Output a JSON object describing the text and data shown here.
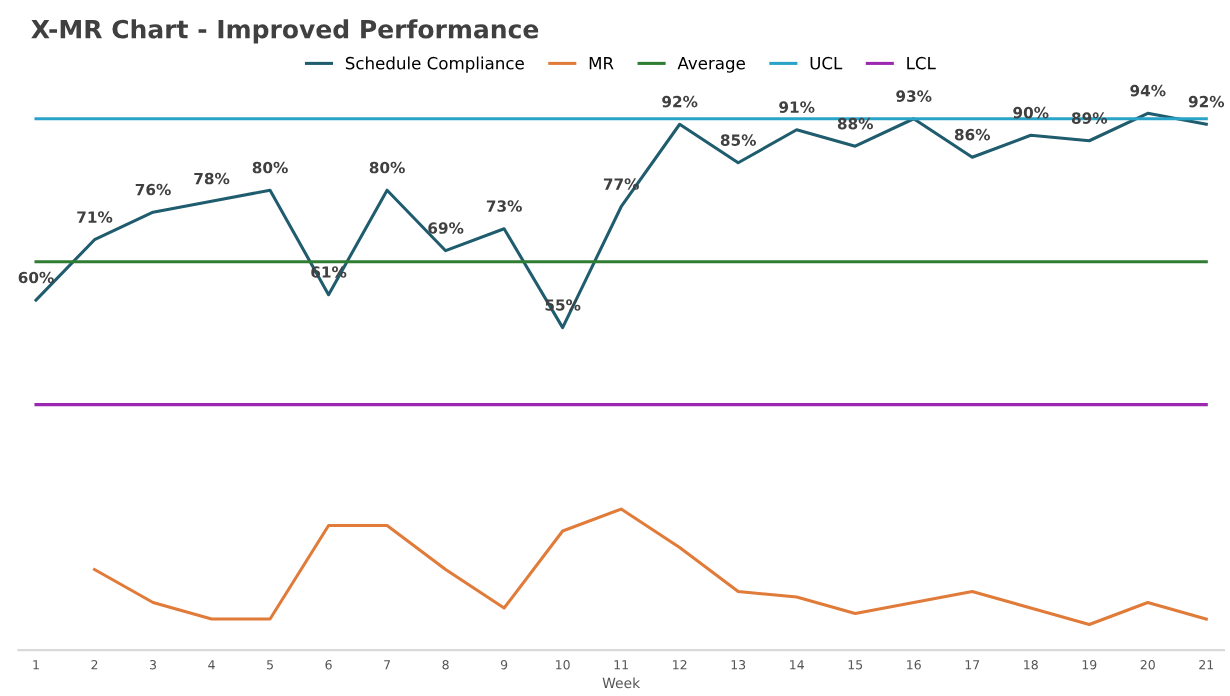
{
  "chart_data": {
    "type": "line",
    "title": "X-MR Chart - Improved Performance",
    "xlabel": "Week",
    "categories": [
      "1",
      "2",
      "3",
      "4",
      "5",
      "6",
      "7",
      "8",
      "9",
      "10",
      "11",
      "12",
      "13",
      "14",
      "15",
      "16",
      "17",
      "18",
      "19",
      "20",
      "21"
    ],
    "series": [
      {
        "name": "Schedule Compliance",
        "color": "#1f5c6e",
        "values": [
          60,
          71,
          76,
          78,
          80,
          61,
          80,
          69,
          73,
          55,
          77,
          92,
          85,
          91,
          88,
          93,
          86,
          90,
          89,
          94,
          92
        ],
        "value_labels": [
          "60%",
          "71%",
          "76%",
          "78%",
          "80%",
          "61%",
          "80%",
          "69%",
          "73%",
          "55%",
          "77%",
          "92%",
          "85%",
          "91%",
          "88%",
          "93%",
          "86%",
          "90%",
          "89%",
          "94%",
          "92%"
        ]
      },
      {
        "name": "MR",
        "color": "#e07b39",
        "values": [
          null,
          11,
          5,
          2,
          2,
          19,
          19,
          11,
          4,
          18,
          22,
          15,
          7,
          6,
          3,
          5,
          7,
          4,
          1,
          5,
          2
        ]
      },
      {
        "name": "Average",
        "color": "#2e7d32",
        "values": [
          67,
          67,
          67,
          67,
          67,
          67,
          67,
          67,
          67,
          67,
          67,
          67,
          67,
          67,
          67,
          67,
          67,
          67,
          67,
          67,
          67
        ]
      },
      {
        "name": "UCL",
        "color": "#2aa3c9",
        "values": [
          93,
          93,
          93,
          93,
          93,
          93,
          93,
          93,
          93,
          93,
          93,
          93,
          93,
          93,
          93,
          93,
          93,
          93,
          93,
          93,
          93
        ]
      },
      {
        "name": "LCL",
        "color": "#9c27b0",
        "values": [
          41,
          41,
          41,
          41,
          41,
          41,
          41,
          41,
          41,
          41,
          41,
          41,
          41,
          41,
          41,
          41,
          41,
          41,
          41,
          41,
          41
        ]
      }
    ],
    "tick_labels": "x",
    "grid": false,
    "legend": "top",
    "marker": "none",
    "line_style": "solid"
  }
}
